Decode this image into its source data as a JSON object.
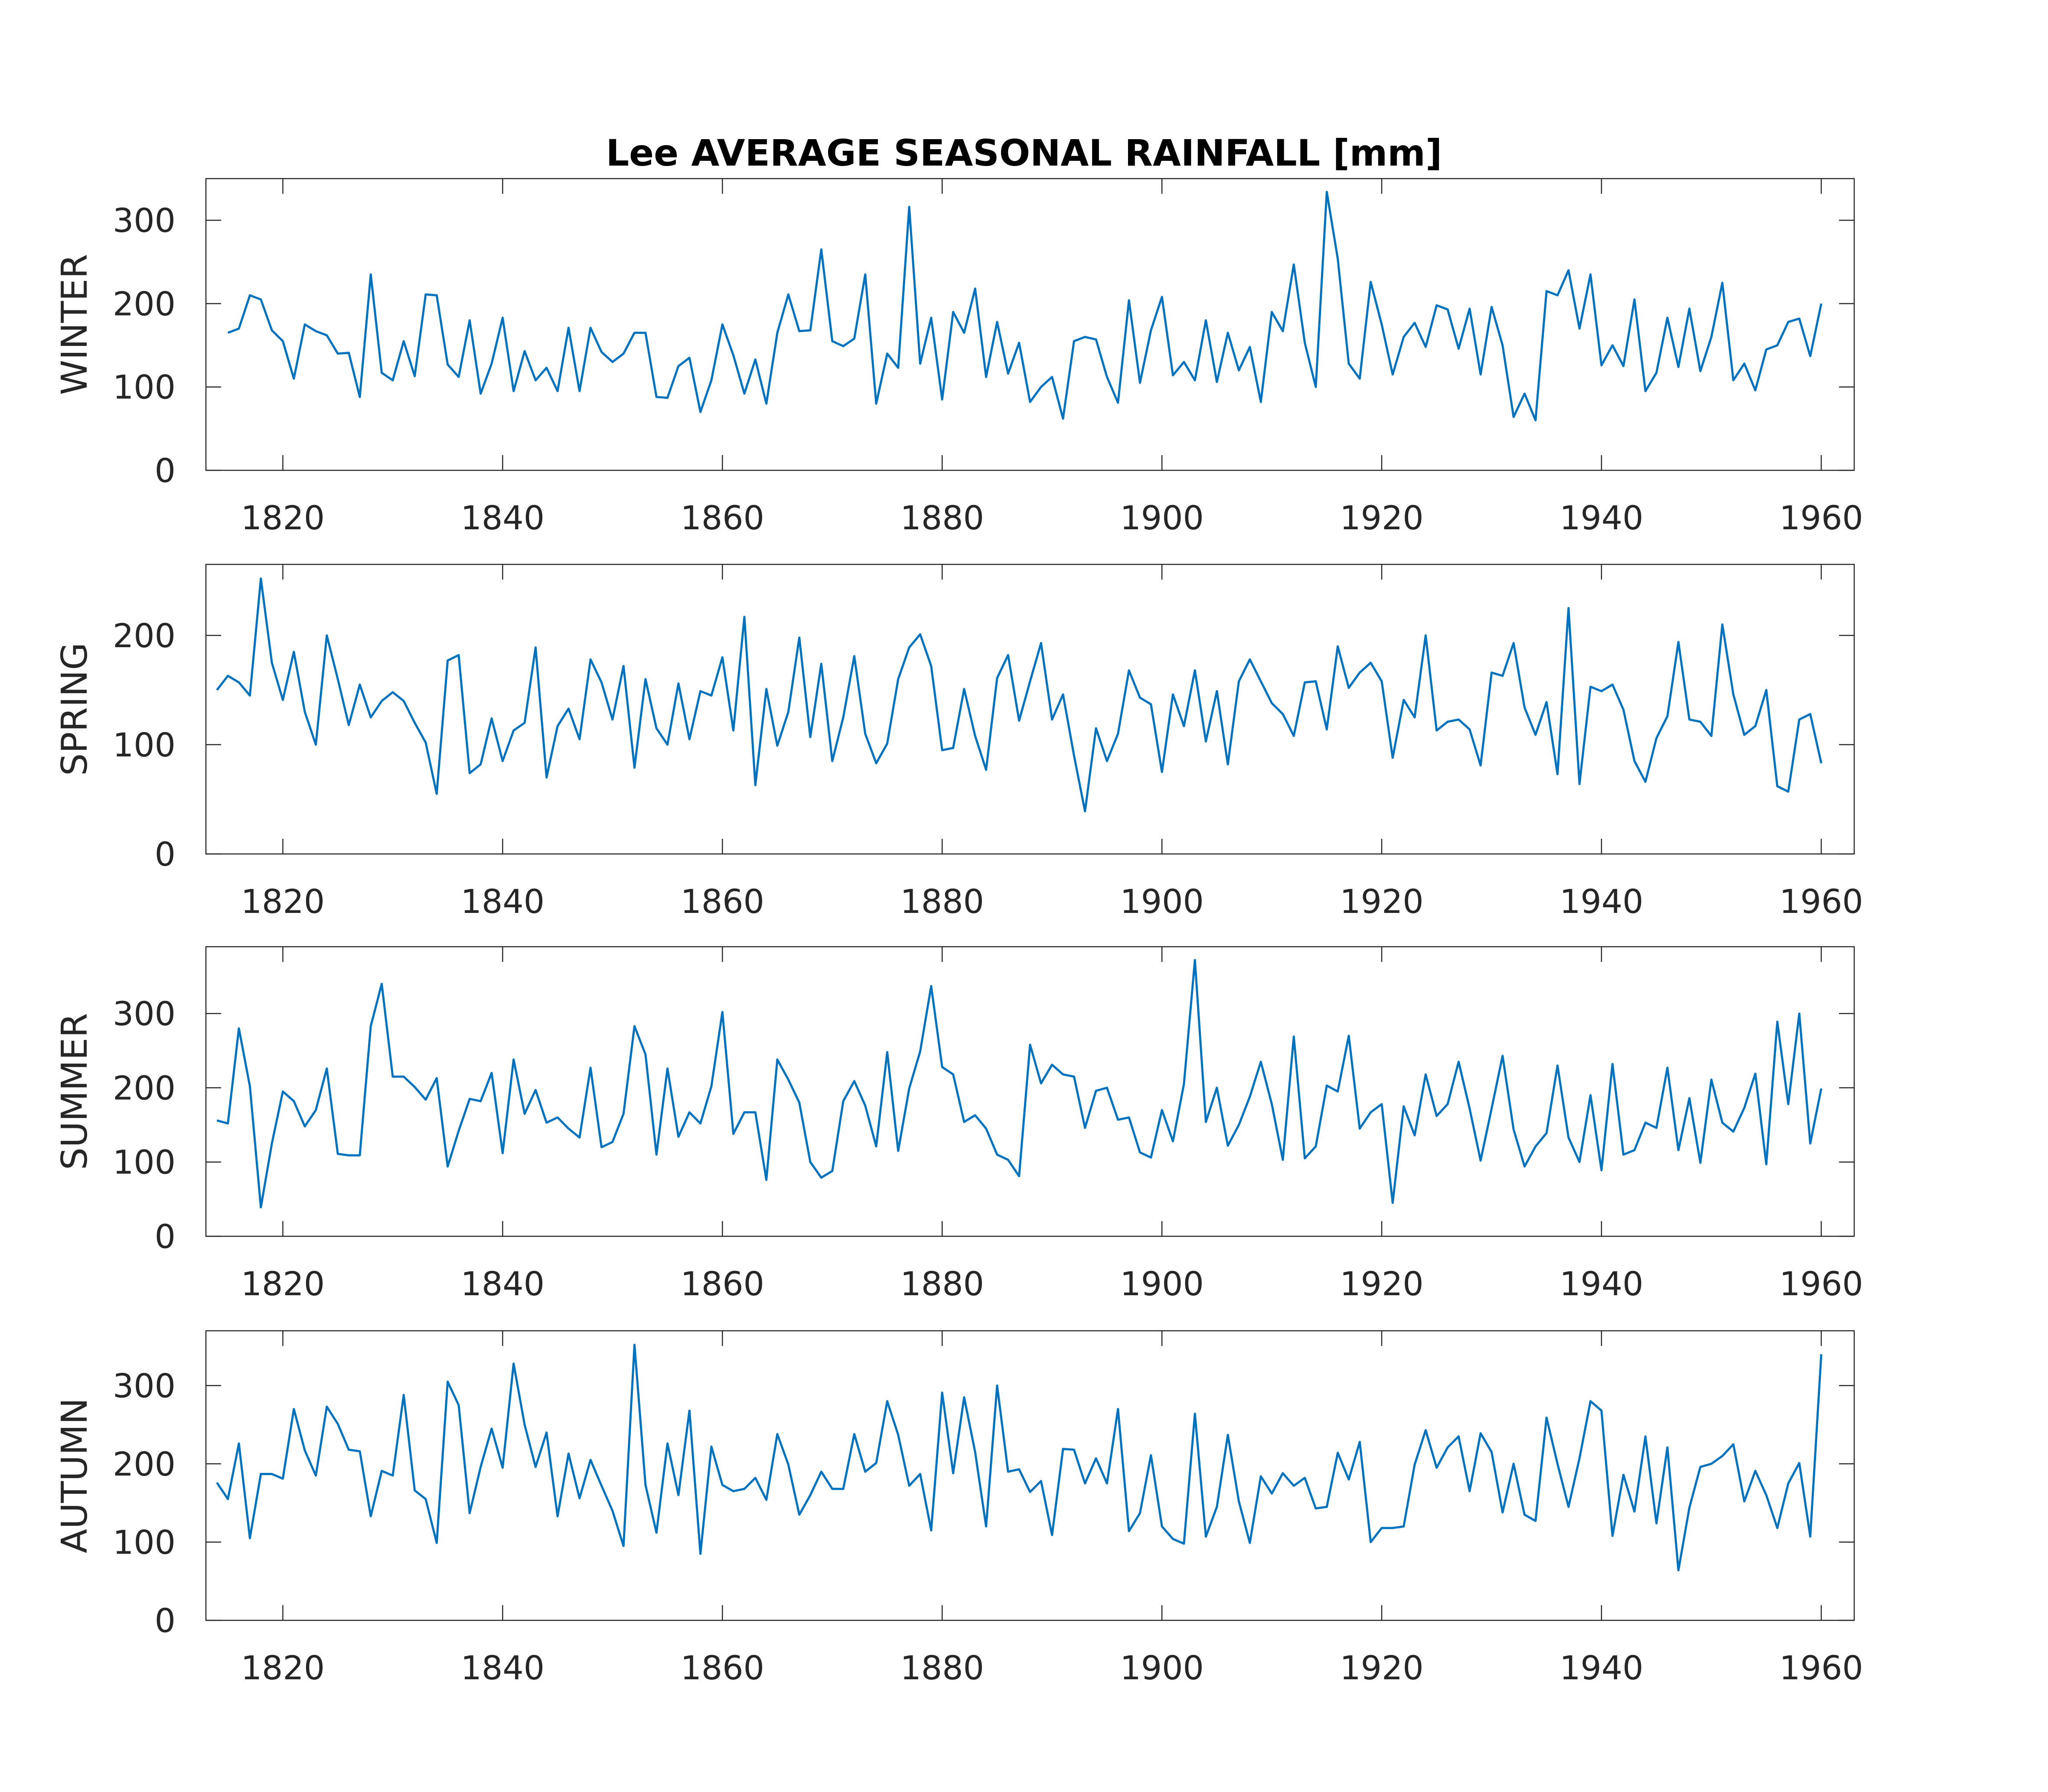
{
  "chart_data": [
    {
      "type": "line",
      "title": "Lee AVERAGE SEASONAL RAINFALL [mm]",
      "ylabel": "WINTER",
      "xlabel": "",
      "xlim": [
        1813,
        1963
      ],
      "ylim": [
        0,
        350
      ],
      "xticks": [
        1820,
        1840,
        1860,
        1880,
        1900,
        1920,
        1940,
        1960
      ],
      "yticks": [
        0,
        100,
        200,
        300
      ],
      "x_start": 1815,
      "values": [
        165,
        170,
        210,
        205,
        168,
        155,
        110,
        175,
        167,
        162,
        140,
        141,
        88,
        235,
        117,
        108,
        155,
        113,
        211,
        210,
        127,
        112,
        180,
        92,
        128,
        183,
        95,
        143,
        108,
        123,
        95,
        171,
        95,
        171,
        142,
        130,
        140,
        165,
        165,
        88,
        87,
        125,
        135,
        70,
        108,
        175,
        138,
        92,
        133,
        80,
        165,
        211,
        167,
        168,
        265,
        155,
        149,
        158,
        235,
        80,
        140,
        123,
        316,
        128,
        183,
        85,
        190,
        165,
        218,
        112,
        178,
        116,
        153,
        82,
        100,
        112,
        62,
        155,
        160,
        157,
        112,
        81,
        204,
        105,
        168,
        208,
        114,
        130,
        108,
        180,
        106,
        165,
        120,
        148,
        82,
        190,
        167,
        247,
        153,
        100,
        334,
        254,
        128,
        110,
        226,
        175,
        115,
        160,
        177,
        148,
        198,
        193,
        146,
        194,
        115,
        196,
        150,
        64,
        92,
        60,
        215,
        210,
        240,
        170,
        235,
        126,
        150,
        125,
        205,
        95,
        117,
        183,
        124,
        194,
        119,
        160,
        225,
        108,
        128,
        96,
        145,
        150,
        178,
        182,
        137,
        200
      ]
    },
    {
      "type": "line",
      "title": "",
      "ylabel": "SPRING",
      "xlabel": "",
      "xlim": [
        1813,
        1963
      ],
      "ylim": [
        0,
        265
      ],
      "xticks": [
        1820,
        1840,
        1860,
        1880,
        1900,
        1920,
        1940,
        1960
      ],
      "yticks": [
        0,
        100,
        200
      ],
      "x_start": 1814,
      "values": [
        150,
        163,
        157,
        145,
        252,
        175,
        141,
        185,
        130,
        100,
        200,
        160,
        118,
        155,
        125,
        140,
        148,
        140,
        120,
        102,
        55,
        177,
        182,
        74,
        82,
        124,
        85,
        113,
        120,
        189,
        70,
        117,
        133,
        105,
        178,
        157,
        123,
        172,
        79,
        160,
        115,
        100,
        156,
        105,
        149,
        145,
        180,
        113,
        217,
        63,
        151,
        99,
        130,
        198,
        107,
        174,
        85,
        125,
        181,
        110,
        83,
        101,
        160,
        189,
        201,
        172,
        95,
        97,
        151,
        108,
        77,
        161,
        182,
        122,
        158,
        193,
        123,
        146,
        90,
        39,
        115,
        85,
        110,
        168,
        143,
        137,
        75,
        146,
        117,
        168,
        103,
        149,
        82,
        158,
        178,
        158,
        138,
        128,
        108,
        157,
        158,
        114,
        190,
        152,
        166,
        175,
        158,
        88,
        141,
        125,
        200,
        113,
        121,
        123,
        114,
        81,
        166,
        163,
        193,
        134,
        109,
        139,
        73,
        225,
        64,
        153,
        149,
        155,
        132,
        85,
        66,
        106,
        126,
        194,
        123,
        121,
        108,
        210,
        146,
        109,
        117,
        150,
        62,
        57,
        123,
        128,
        83
      ]
    },
    {
      "type": "line",
      "title": "",
      "ylabel": "SUMMER",
      "xlabel": "",
      "xlim": [
        1813,
        1963
      ],
      "ylim": [
        0,
        390
      ],
      "xticks": [
        1820,
        1840,
        1860,
        1880,
        1900,
        1920,
        1940,
        1960
      ],
      "yticks": [
        0,
        100,
        200,
        300
      ],
      "x_start": 1814,
      "values": [
        156,
        152,
        280,
        202,
        39,
        125,
        195,
        182,
        148,
        170,
        226,
        111,
        109,
        109,
        283,
        340,
        215,
        215,
        201,
        184,
        213,
        94,
        142,
        185,
        182,
        220,
        112,
        238,
        165,
        197,
        153,
        160,
        145,
        133,
        227,
        120,
        127,
        165,
        283,
        245,
        110,
        226,
        134,
        167,
        152,
        202,
        302,
        138,
        167,
        167,
        76,
        238,
        211,
        180,
        100,
        79,
        88,
        182,
        209,
        176,
        121,
        248,
        115,
        199,
        249,
        337,
        228,
        218,
        154,
        163,
        145,
        110,
        103,
        81,
        258,
        206,
        231,
        218,
        215,
        146,
        196,
        200,
        157,
        160,
        113,
        106,
        170,
        128,
        205,
        372,
        154,
        200,
        122,
        150,
        188,
        235,
        178,
        103,
        269,
        105,
        121,
        203,
        195,
        270,
        145,
        167,
        178,
        45,
        175,
        136,
        218,
        162,
        178,
        235,
        172,
        102,
        172,
        243,
        144,
        94,
        121,
        139,
        230,
        133,
        100,
        190,
        89,
        232,
        110,
        116,
        153,
        146,
        227,
        116,
        186,
        99,
        211,
        153,
        141,
        173,
        219,
        97,
        289,
        178,
        300,
        125,
        199
      ]
    },
    {
      "type": "line",
      "title": "",
      "ylabel": "AUTUMN",
      "xlabel": "",
      "xlim": [
        1813,
        1963
      ],
      "ylim": [
        0,
        370
      ],
      "xticks": [
        1820,
        1840,
        1860,
        1880,
        1900,
        1920,
        1940,
        1960
      ],
      "yticks": [
        0,
        100,
        200,
        300
      ],
      "x_start": 1814,
      "values": [
        176,
        155,
        226,
        105,
        187,
        187,
        181,
        270,
        217,
        185,
        273,
        251,
        218,
        216,
        133,
        191,
        185,
        288,
        166,
        155,
        99,
        305,
        275,
        137,
        196,
        245,
        195,
        328,
        250,
        196,
        240,
        133,
        213,
        156,
        205,
        172,
        140,
        95,
        352,
        173,
        112,
        226,
        160,
        268,
        85,
        222,
        173,
        165,
        168,
        182,
        154,
        238,
        199,
        135,
        160,
        190,
        168,
        168,
        238,
        190,
        201,
        280,
        237,
        172,
        187,
        115,
        291,
        188,
        285,
        215,
        120,
        300,
        190,
        193,
        164,
        178,
        109,
        219,
        218,
        175,
        207,
        175,
        270,
        114,
        137,
        211,
        120,
        104,
        98,
        264,
        107,
        145,
        237,
        152,
        99,
        184,
        162,
        188,
        172,
        182,
        143,
        145,
        214,
        180,
        228,
        100,
        118,
        118,
        120,
        199,
        243,
        195,
        221,
        235,
        165,
        239,
        215,
        138,
        200,
        135,
        127,
        259,
        200,
        145,
        207,
        280,
        268,
        108,
        186,
        139,
        235,
        124,
        221,
        64,
        144,
        196,
        200,
        210,
        225,
        152,
        191,
        160,
        118,
        175,
        201,
        107,
        340
      ]
    }
  ]
}
